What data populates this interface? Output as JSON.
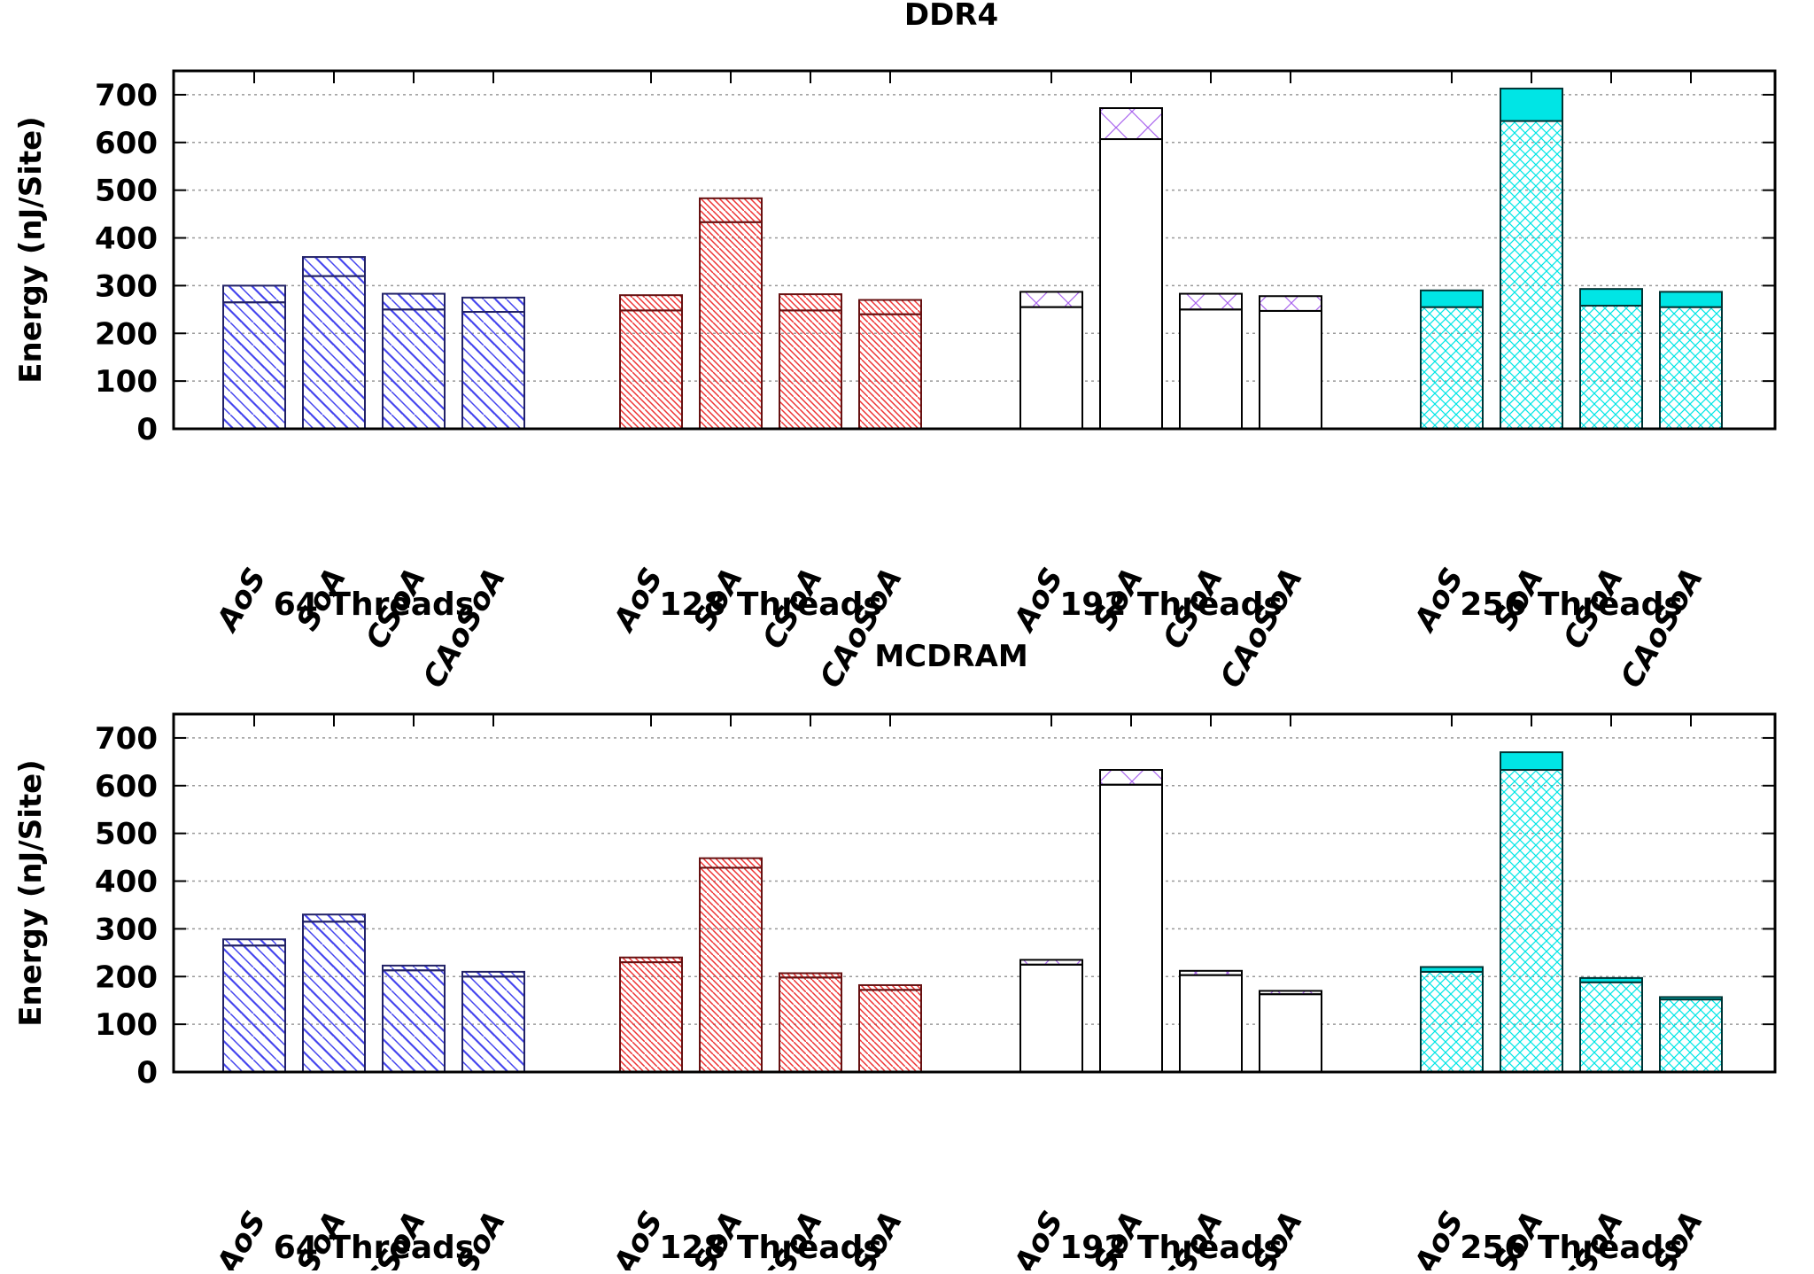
{
  "chart_data": [
    {
      "type": "bar",
      "stacked": true,
      "title": "DDR4",
      "ylabel": "Energy (nJ/Site)",
      "xlabel": "",
      "ylim": [
        0,
        750
      ],
      "yticks": [
        0,
        100,
        200,
        300,
        400,
        500,
        600,
        700
      ],
      "grid": true,
      "categories": [
        "AoS",
        "SoA",
        "CSoA",
        "CAoSoA"
      ],
      "groups": [
        {
          "label": "64 Threads",
          "color": "#4444ee",
          "pattern": "diag",
          "base": [
            265,
            320,
            250,
            245
          ],
          "total": [
            300,
            360,
            283,
            275
          ]
        },
        {
          "label": "128 Threads",
          "color": "#ee3333",
          "pattern": "diagdense",
          "base": [
            248,
            433,
            248,
            240
          ],
          "total": [
            280,
            483,
            282,
            270
          ]
        },
        {
          "label": "192 Threads",
          "color": "#aa66ee",
          "pattern": "cross",
          "base": [
            255,
            607,
            250,
            247
          ],
          "total": [
            287,
            672,
            283,
            278
          ]
        },
        {
          "label": "256 Threads",
          "color": "#00e5e5",
          "pattern": "grid",
          "base": [
            255,
            645,
            258,
            255
          ],
          "total": [
            290,
            713,
            293,
            287
          ]
        }
      ]
    },
    {
      "type": "bar",
      "stacked": true,
      "title": "MCDRAM",
      "ylabel": "Energy (nJ/Site)",
      "xlabel": "",
      "ylim": [
        0,
        750
      ],
      "yticks": [
        0,
        100,
        200,
        300,
        400,
        500,
        600,
        700
      ],
      "grid": true,
      "categories": [
        "AoS",
        "SoA",
        "CSoA",
        "CAoSoA"
      ],
      "groups": [
        {
          "label": "64 Threads",
          "color": "#4444ee",
          "pattern": "diag",
          "base": [
            265,
            315,
            213,
            200
          ],
          "total": [
            278,
            330,
            223,
            210
          ]
        },
        {
          "label": "128 Threads",
          "color": "#ee3333",
          "pattern": "diagdense",
          "base": [
            230,
            428,
            198,
            172
          ],
          "total": [
            240,
            448,
            207,
            182
          ]
        },
        {
          "label": "192 Threads",
          "color": "#aa66ee",
          "pattern": "cross",
          "base": [
            225,
            602,
            203,
            163
          ],
          "total": [
            235,
            633,
            212,
            170
          ]
        },
        {
          "label": "256 Threads",
          "color": "#00e5e5",
          "pattern": "grid",
          "base": [
            210,
            633,
            188,
            152
          ],
          "total": [
            220,
            670,
            197,
            157
          ]
        }
      ]
    }
  ]
}
